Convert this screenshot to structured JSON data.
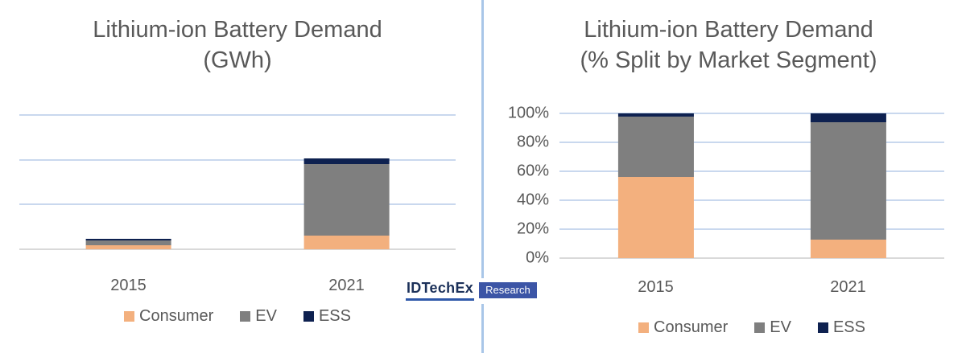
{
  "page": {
    "background": "#FFFFFF"
  },
  "text_color": "#595959",
  "gridline_color": "#C9D8EE",
  "axis_line_color": "#D9D9D9",
  "divider_color": "#A9C6E8",
  "logo": {
    "brand": "IDTechEx",
    "product": "Research",
    "brand_color": "#1B3059",
    "underline_color": "#2E58A9",
    "box_color": "#3C55A6",
    "box_text_color": "#FFFFFF"
  },
  "chart_data": [
    {
      "type": "bar",
      "stacked": true,
      "title": "Lithium-ion Battery Demand (GWh)",
      "title_line1": "Lithium-ion Battery Demand",
      "title_line2": "(GWh)",
      "categories": [
        "2015",
        "2021"
      ],
      "series": [
        {
          "name": "Consumer",
          "color": "#F3B07E",
          "values": [
            9,
            30
          ]
        },
        {
          "name": "EV",
          "color": "#7F7F7F",
          "values": [
            10,
            160
          ]
        },
        {
          "name": "ESS",
          "color": "#0E2150",
          "values": [
            5,
            13
          ]
        }
      ],
      "ylabel": "GWh",
      "ylim": [
        0,
        300
      ],
      "gridline_step": 100,
      "y_axis_labeled": false,
      "note": "y-axis has no tick labels; segment values estimated from unlabeled gridlines (one gridline interval = 100 units)",
      "bar_centers_pct": [
        25,
        75
      ],
      "grid": true,
      "legend_position": "bottom"
    },
    {
      "type": "bar",
      "stacked": true,
      "stacked_100_percent": true,
      "title": "Lithium-ion Battery Demand (% Split by Market Segment)",
      "title_line1": "Lithium-ion Battery Demand",
      "title_line2": "(% Split by Market Segment)",
      "categories": [
        "2015",
        "2021"
      ],
      "series": [
        {
          "name": "Consumer",
          "color": "#F3B07E",
          "values": [
            56,
            13
          ]
        },
        {
          "name": "EV",
          "color": "#7F7F7F",
          "values": [
            42,
            81
          ]
        },
        {
          "name": "ESS",
          "color": "#0E2150",
          "values": [
            2,
            6
          ]
        }
      ],
      "ylabel": "",
      "ylim": [
        0,
        100
      ],
      "gridline_step": 20,
      "ytick_labels": [
        "0%",
        "20%",
        "40%",
        "60%",
        "80%",
        "100%"
      ],
      "bar_centers_pct": [
        25,
        75
      ],
      "grid": true,
      "legend_position": "bottom"
    }
  ]
}
